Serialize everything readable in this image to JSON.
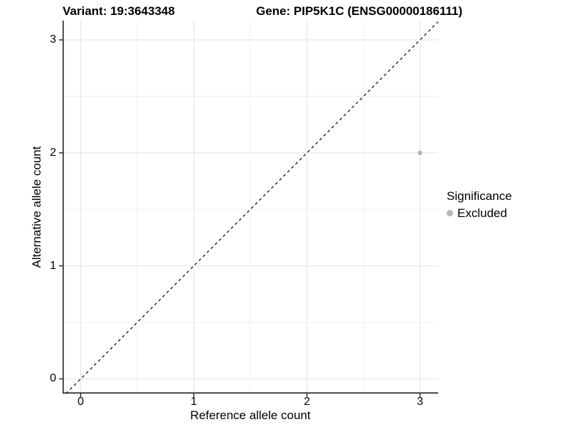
{
  "titles": {
    "variant": "Variant: 19:3643348",
    "gene": "Gene: PIP5K1C (ENSG00000186111)"
  },
  "legend": {
    "title": "Significance",
    "items": [
      {
        "label": "Excluded",
        "color": "#b5b5b5"
      }
    ]
  },
  "chart_data": {
    "type": "scatter",
    "xlabel": "Reference allele count",
    "ylabel": "Alternative allele count",
    "xlim": [
      -0.16,
      3.16
    ],
    "ylim": [
      -0.13,
      3.17
    ],
    "x_ticks": [
      0,
      1,
      2,
      3
    ],
    "y_ticks": [
      0,
      1,
      2,
      3
    ],
    "x_minor_ticks": [
      0.5,
      1.5,
      2.5
    ],
    "y_minor_ticks": [
      0.5,
      1.5,
      2.5
    ],
    "series": [
      {
        "name": "Excluded",
        "color": "#b5b5b5",
        "points": [
          {
            "x": 3,
            "y": 2
          }
        ]
      }
    ],
    "identity_line": {
      "style": "dashed",
      "slope": 1,
      "intercept": 0,
      "color": "#111111"
    },
    "grid": true,
    "legend_position": "right",
    "colors": {
      "grid_major": "#e3e3e3",
      "grid_minor": "#f0f0f0",
      "axis_line": "#222222",
      "point": "#b5b5b5",
      "background": "#ffffff"
    }
  }
}
